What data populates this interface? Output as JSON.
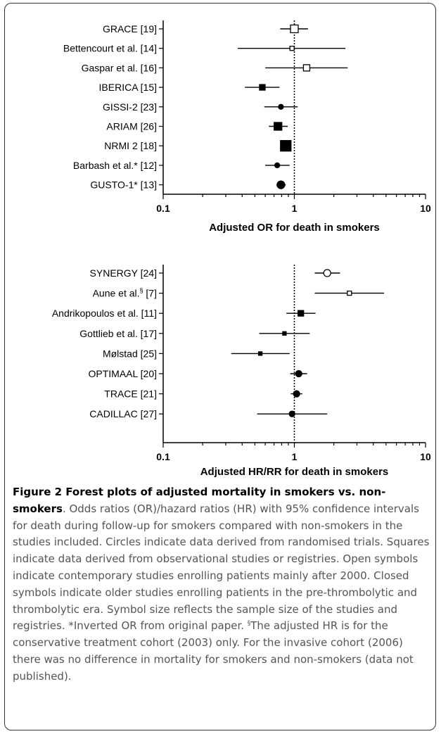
{
  "chart_data": [
    {
      "type": "forest",
      "xlabel": "Adjusted OR for death in smokers",
      "xscale": "log",
      "xlim": [
        0.1,
        10
      ],
      "xticks": [
        "0.1",
        "1",
        "10"
      ],
      "reference_line": 1,
      "studies": [
        {
          "label": "GRACE [19]",
          "estimate": 1.0,
          "ci": [
            0.78,
            1.27
          ],
          "marker": "square",
          "filled": false,
          "size": 11
        },
        {
          "label": "Bettencourt et al. [14]",
          "estimate": 0.96,
          "ci": [
            0.37,
            2.45
          ],
          "marker": "square",
          "filled": false,
          "size": 6
        },
        {
          "label": "Gaspar et al. [16]",
          "estimate": 1.24,
          "ci": [
            0.6,
            2.55
          ],
          "marker": "square",
          "filled": false,
          "size": 9
        },
        {
          "label": "IBERICA [15]",
          "estimate": 0.57,
          "ci": [
            0.42,
            0.77
          ],
          "marker": "square",
          "filled": true,
          "size": 8
        },
        {
          "label": "GISSI-2 [23]",
          "estimate": 0.79,
          "ci": [
            0.59,
            1.06
          ],
          "marker": "circle",
          "filled": true,
          "size": 7
        },
        {
          "label": "ARIAM [26]",
          "estimate": 0.75,
          "ci": [
            0.64,
            0.89
          ],
          "marker": "square",
          "filled": true,
          "size": 11
        },
        {
          "label": "NRMI 2 [18]",
          "estimate": 0.86,
          "ci": [
            0.81,
            0.91
          ],
          "marker": "square",
          "filled": true,
          "size": 15
        },
        {
          "label": "Barbash et al.* [12]",
          "estimate": 0.74,
          "ci": [
            0.6,
            0.92
          ],
          "marker": "circle",
          "filled": true,
          "size": 7
        },
        {
          "label": "GUSTO-1* [13]",
          "estimate": 0.79,
          "ci": [
            0.73,
            0.86
          ],
          "marker": "circle",
          "filled": true,
          "size": 11
        }
      ]
    },
    {
      "type": "forest",
      "xlabel": "Adjusted HR/RR for death in smokers",
      "xscale": "log",
      "xlim": [
        0.1,
        10
      ],
      "xticks": [
        "0.1",
        "1",
        "10"
      ],
      "reference_line": 1,
      "studies": [
        {
          "label": "SYNERGY [24]",
          "estimate": 1.78,
          "ci": [
            1.43,
            2.23
          ],
          "marker": "circle",
          "filled": false,
          "size": 10
        },
        {
          "label": "Aune et al.",
          "label_sup": "§",
          "label_tail": " [7]",
          "estimate": 2.63,
          "ci": [
            1.43,
            4.83
          ],
          "marker": "square",
          "filled": false,
          "size": 6
        },
        {
          "label": "Andrikopoulos et al. [11]",
          "estimate": 1.12,
          "ci": [
            0.87,
            1.45
          ],
          "marker": "square",
          "filled": true,
          "size": 8
        },
        {
          "label": "Gottlieb et al. [17]",
          "estimate": 0.84,
          "ci": [
            0.54,
            1.31
          ],
          "marker": "square",
          "filled": true,
          "size": 5
        },
        {
          "label": "Mølstad [25]",
          "estimate": 0.55,
          "ci": [
            0.33,
            0.92
          ],
          "marker": "square",
          "filled": true,
          "size": 5
        },
        {
          "label": "OPTIMAAL [20]",
          "estimate": 1.08,
          "ci": [
            0.93,
            1.25
          ],
          "marker": "circle",
          "filled": true,
          "size": 9
        },
        {
          "label": "TRACE [21]",
          "estimate": 1.04,
          "ci": [
            0.94,
            1.15
          ],
          "marker": "circle",
          "filled": true,
          "size": 9
        },
        {
          "label": "CADILLAC [27]",
          "estimate": 0.96,
          "ci": [
            0.52,
            1.78
          ],
          "marker": "circle",
          "filled": true,
          "size": 8
        }
      ]
    }
  ],
  "caption": {
    "title": "Figure 2 Forest plots of adjusted mortality in smokers vs. non-smokers",
    "body1": ". Odds ratios (OR)/hazard ratios (HR) with 95% confidence intervals for death during follow-up for smokers compared with non-smokers in the studies included. Circles indicate data derived from randomised trials. Squares indicate data derived from observational studies or registries. Open symbols indicate contemporary studies enrolling patients mainly after 2000. Closed symbols indicate older studies enrolling patients in the pre-thrombolytic and thrombolytic era. Symbol size reflects the sample size of the studies and registries. *Inverted OR from original paper. ",
    "sup": "§",
    "body2": "The adjusted HR is for the conservative treatment cohort (2003) only. For the invasive cohort (2006) there was no difference in mortality for smokers and non-smokers (data not published)."
  }
}
